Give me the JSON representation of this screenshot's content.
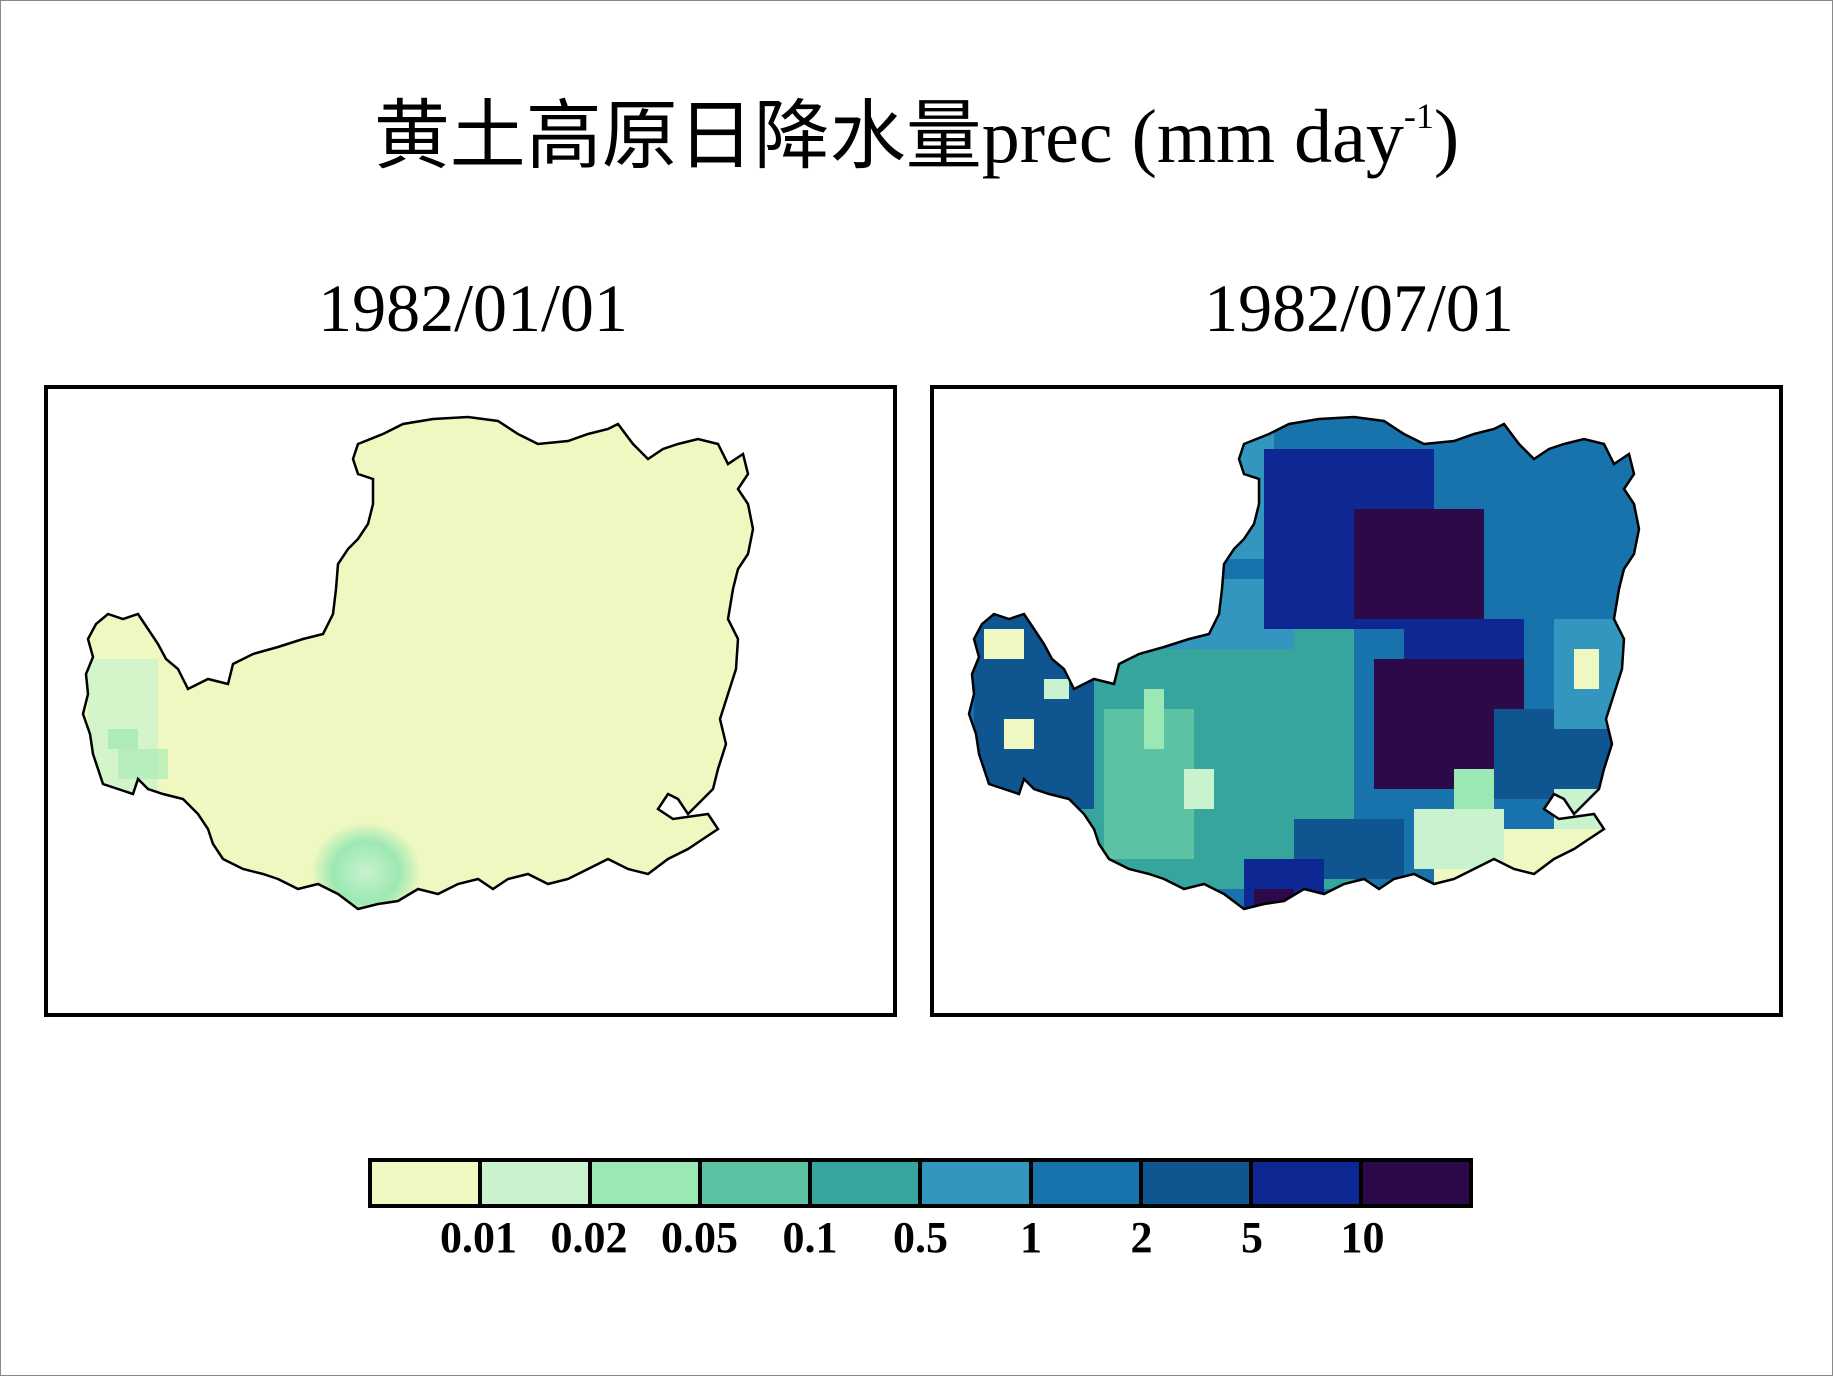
{
  "title": {
    "main": "黄土高原日降水量prec (mm day",
    "sup": "-1",
    "close": ")"
  },
  "panels": [
    {
      "label": "1982/01/01"
    },
    {
      "label": "1982/07/01"
    }
  ],
  "legend": {
    "colors": [
      "#eef8c0",
      "#c9f3cf",
      "#9ce8b4",
      "#5cc2a3",
      "#35a59e",
      "#3296bf",
      "#1872ac",
      "#0f5690",
      "#0d2893",
      "#2c0a4a"
    ],
    "ticks": [
      "0.01",
      "0.02",
      "0.05",
      "0.1",
      "0.5",
      "1",
      "2",
      "5",
      "10"
    ]
  }
}
